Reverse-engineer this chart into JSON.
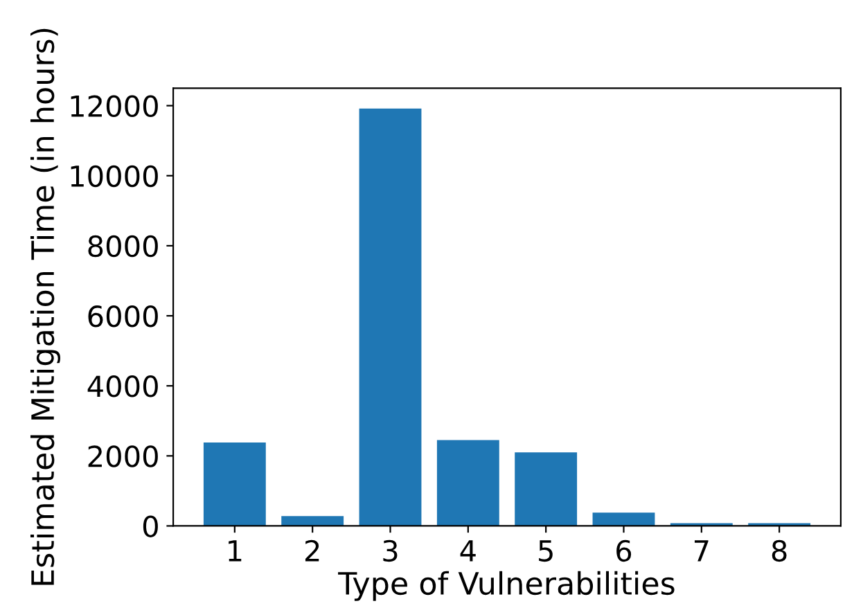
{
  "chart_data": {
    "type": "bar",
    "xlabel": "Type of Vulnerabilities",
    "ylabel": "Estimated Mitigation Time (in hours)",
    "categories": [
      "1",
      "2",
      "3",
      "4",
      "5",
      "6",
      "7",
      "8"
    ],
    "values": [
      2380,
      280,
      11920,
      2450,
      2100,
      380,
      80,
      80
    ],
    "color": "#1f77b4",
    "ylim": [
      0,
      12500
    ],
    "yticks": [
      0,
      2000,
      4000,
      6000,
      8000,
      10000,
      12000
    ],
    "grid": false
  }
}
